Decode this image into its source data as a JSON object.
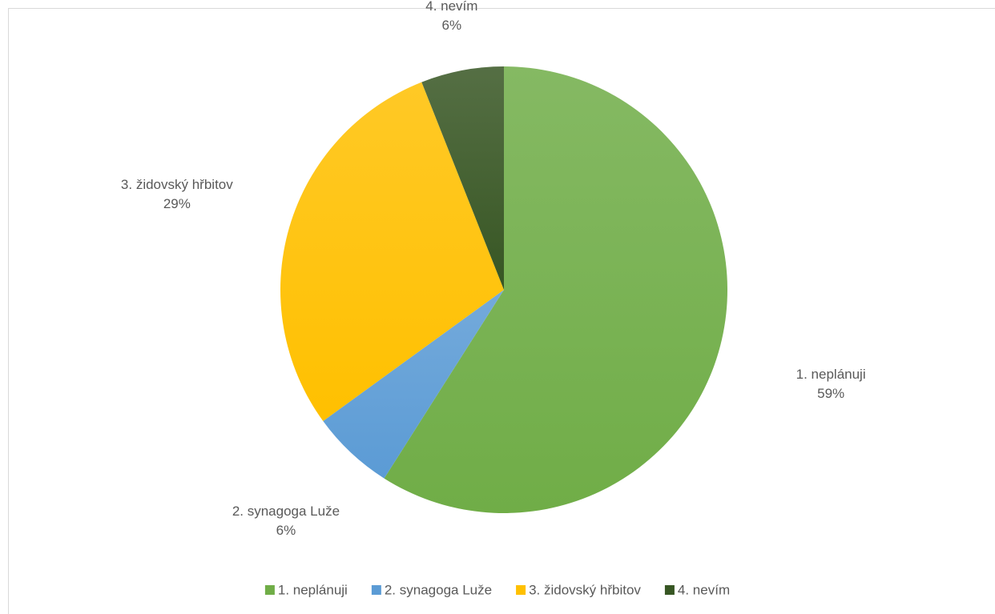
{
  "chart_data": {
    "type": "pie",
    "categories": [
      "1. neplánuji",
      "2. synagoga Luže",
      "3. židovský hřbitov",
      "4. nevím"
    ],
    "values": [
      59,
      6,
      29,
      6
    ],
    "value_labels": [
      "59%",
      "6%",
      "29%",
      "6%"
    ],
    "colors": [
      "#70ad47",
      "#5b9bd5",
      "#ffc000",
      "#375623"
    ],
    "legend": "bottom"
  }
}
